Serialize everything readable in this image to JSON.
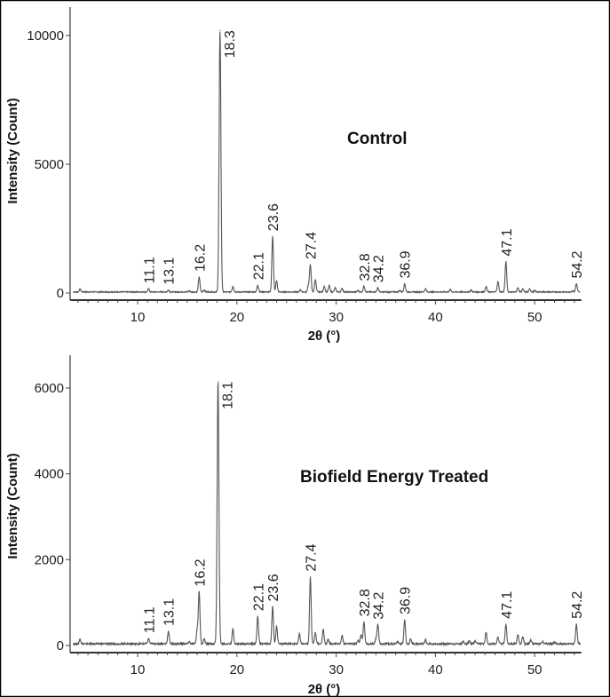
{
  "chart_data": [
    {
      "type": "line",
      "title": "",
      "annotation": "Control",
      "xlabel": "2θ (°)",
      "ylabel": "Intensity (Count)",
      "xlim": [
        3.2,
        54.7
      ],
      "ylim": [
        0,
        11100
      ],
      "xticks": [
        10,
        20,
        30,
        40,
        50
      ],
      "yticks": [
        0,
        5000,
        10000
      ],
      "grid": false,
      "line_color": "#555555",
      "peaks": [
        {
          "x": 4.2,
          "y": 150
        },
        {
          "x": 11.1,
          "y": 160
        },
        {
          "x": 13.1,
          "y": 110
        },
        {
          "x": 15.2,
          "y": 80
        },
        {
          "x": 16.2,
          "y": 620
        },
        {
          "x": 16.7,
          "y": 120
        },
        {
          "x": 18.3,
          "y": 10200
        },
        {
          "x": 19.6,
          "y": 260
        },
        {
          "x": 22.1,
          "y": 300
        },
        {
          "x": 23.6,
          "y": 2200
        },
        {
          "x": 24.0,
          "y": 480
        },
        {
          "x": 26.4,
          "y": 120
        },
        {
          "x": 27.2,
          "y": 300
        },
        {
          "x": 27.4,
          "y": 1100
        },
        {
          "x": 27.9,
          "y": 520
        },
        {
          "x": 28.8,
          "y": 260
        },
        {
          "x": 29.3,
          "y": 280
        },
        {
          "x": 29.9,
          "y": 200
        },
        {
          "x": 30.6,
          "y": 180
        },
        {
          "x": 32.2,
          "y": 90
        },
        {
          "x": 32.8,
          "y": 260
        },
        {
          "x": 34.2,
          "y": 200
        },
        {
          "x": 36.4,
          "y": 100
        },
        {
          "x": 36.9,
          "y": 360
        },
        {
          "x": 39.0,
          "y": 160
        },
        {
          "x": 41.5,
          "y": 130
        },
        {
          "x": 43.6,
          "y": 110
        },
        {
          "x": 45.1,
          "y": 250
        },
        {
          "x": 46.3,
          "y": 440
        },
        {
          "x": 47.1,
          "y": 1220
        },
        {
          "x": 48.3,
          "y": 200
        },
        {
          "x": 48.8,
          "y": 150
        },
        {
          "x": 49.5,
          "y": 160
        },
        {
          "x": 50.0,
          "y": 100
        },
        {
          "x": 53.8,
          "y": 80
        },
        {
          "x": 54.2,
          "y": 360
        }
      ],
      "labels": [
        {
          "text": "11.1",
          "x": 11.1,
          "y": 160
        },
        {
          "text": "13.1",
          "x": 13.1,
          "y": 110
        },
        {
          "text": "16.2",
          "x": 16.2,
          "y": 620
        },
        {
          "text": "18.3",
          "x": 18.3,
          "y": 10200
        },
        {
          "text": "22.1",
          "x": 22.1,
          "y": 300
        },
        {
          "text": "23.6",
          "x": 23.6,
          "y": 2200
        },
        {
          "text": "27.4",
          "x": 27.4,
          "y": 1100
        },
        {
          "text": "32.8",
          "x": 32.8,
          "y": 260
        },
        {
          "text": "34.2",
          "x": 34.2,
          "y": 200
        },
        {
          "text": "36.9",
          "x": 36.9,
          "y": 360
        },
        {
          "text": "47.1",
          "x": 47.1,
          "y": 1220
        },
        {
          "text": "54.2",
          "x": 54.2,
          "y": 360
        }
      ]
    },
    {
      "type": "line",
      "title": "",
      "annotation": "Biofield Energy Treated",
      "xlabel": "2θ (°)",
      "ylabel": "Intensity (Count)",
      "xlim": [
        3.2,
        54.7
      ],
      "ylim": [
        0,
        6700
      ],
      "xticks": [
        10,
        20,
        30,
        40,
        50
      ],
      "yticks": [
        0,
        2000,
        4000,
        6000
      ],
      "grid": false,
      "line_color": "#555555",
      "peaks": [
        {
          "x": 4.2,
          "y": 150
        },
        {
          "x": 11.1,
          "y": 160
        },
        {
          "x": 13.1,
          "y": 330
        },
        {
          "x": 15.2,
          "y": 90
        },
        {
          "x": 16.0,
          "y": 380
        },
        {
          "x": 16.2,
          "y": 1250
        },
        {
          "x": 16.7,
          "y": 150
        },
        {
          "x": 18.1,
          "y": 6150
        },
        {
          "x": 19.6,
          "y": 380
        },
        {
          "x": 22.1,
          "y": 680
        },
        {
          "x": 23.6,
          "y": 900
        },
        {
          "x": 24.0,
          "y": 450
        },
        {
          "x": 26.3,
          "y": 270
        },
        {
          "x": 27.4,
          "y": 1600
        },
        {
          "x": 27.9,
          "y": 300
        },
        {
          "x": 28.7,
          "y": 380
        },
        {
          "x": 29.2,
          "y": 150
        },
        {
          "x": 30.6,
          "y": 230
        },
        {
          "x": 32.2,
          "y": 120
        },
        {
          "x": 32.5,
          "y": 250
        },
        {
          "x": 32.8,
          "y": 550
        },
        {
          "x": 34.0,
          "y": 150
        },
        {
          "x": 34.2,
          "y": 480
        },
        {
          "x": 36.2,
          "y": 90
        },
        {
          "x": 36.9,
          "y": 600
        },
        {
          "x": 37.5,
          "y": 150
        },
        {
          "x": 39.0,
          "y": 130
        },
        {
          "x": 42.8,
          "y": 90
        },
        {
          "x": 43.4,
          "y": 110
        },
        {
          "x": 44.0,
          "y": 100
        },
        {
          "x": 45.1,
          "y": 300
        },
        {
          "x": 46.3,
          "y": 200
        },
        {
          "x": 47.1,
          "y": 500
        },
        {
          "x": 48.3,
          "y": 250
        },
        {
          "x": 48.8,
          "y": 200
        },
        {
          "x": 49.6,
          "y": 120
        },
        {
          "x": 50.8,
          "y": 90
        },
        {
          "x": 52.0,
          "y": 80
        },
        {
          "x": 54.2,
          "y": 500
        }
      ],
      "labels": [
        {
          "text": "11.1",
          "x": 11.1,
          "y": 160
        },
        {
          "text": "13.1",
          "x": 13.1,
          "y": 330
        },
        {
          "text": "16.2",
          "x": 16.2,
          "y": 1250
        },
        {
          "text": "18.1",
          "x": 18.1,
          "y": 6150
        },
        {
          "text": "22.1",
          "x": 22.1,
          "y": 680
        },
        {
          "text": "23.6",
          "x": 23.6,
          "y": 900
        },
        {
          "text": "27.4",
          "x": 27.4,
          "y": 1600
        },
        {
          "text": "32.8",
          "x": 32.8,
          "y": 550
        },
        {
          "text": "34.2",
          "x": 34.2,
          "y": 480
        },
        {
          "text": "36.9",
          "x": 36.9,
          "y": 600
        },
        {
          "text": "47.1",
          "x": 47.1,
          "y": 500
        },
        {
          "text": "54.2",
          "x": 54.2,
          "y": 500
        }
      ]
    }
  ]
}
